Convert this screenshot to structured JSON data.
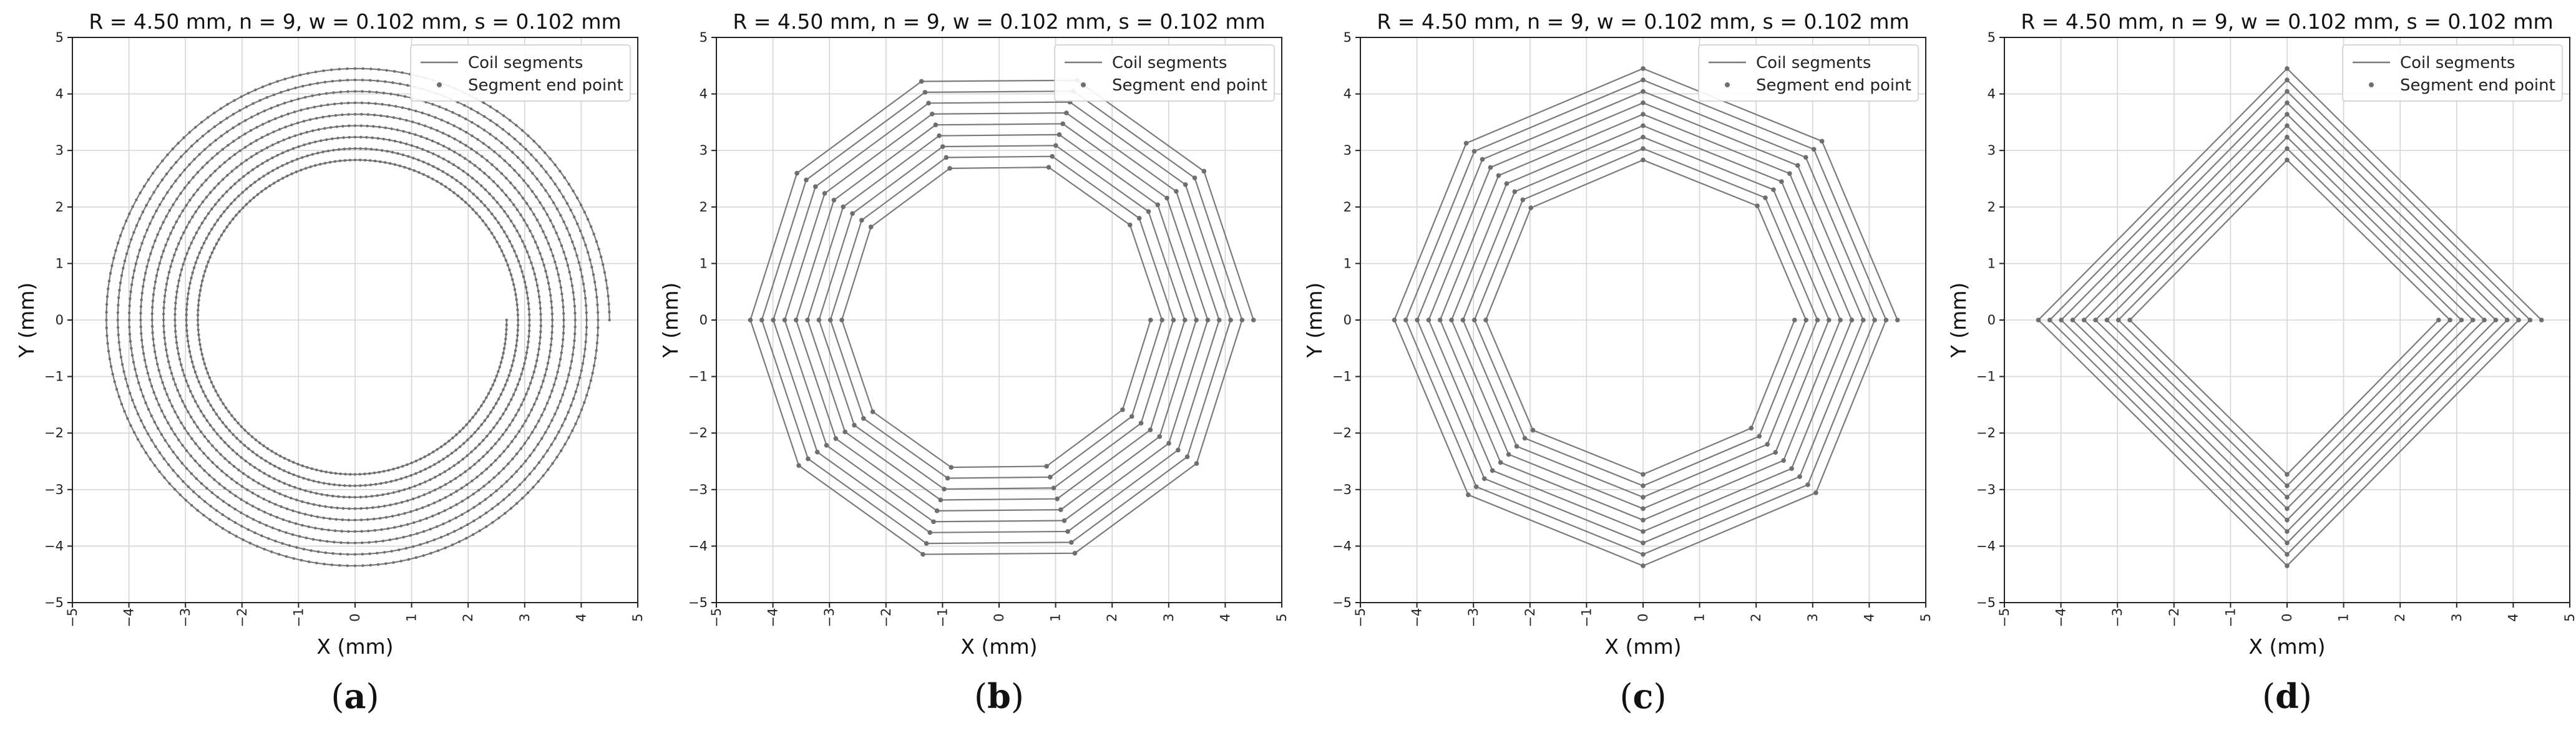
{
  "chart_data": [
    {
      "type": "line",
      "panel_label": "(a)",
      "panel_letter": "a",
      "title": "R =  4.50 mm, n =  9, w =  0.102 mm, s =  0.102 mm",
      "xlabel": "X (mm)",
      "ylabel": "Y (mm)",
      "xlim": [
        -5,
        5
      ],
      "ylim": [
        -5,
        5
      ],
      "xticks": [
        -5,
        -4,
        -3,
        -2,
        -1,
        0,
        1,
        2,
        3,
        4,
        5
      ],
      "yticks": [
        -5,
        -4,
        -3,
        -2,
        -1,
        0,
        1,
        2,
        3,
        4,
        5
      ],
      "grid": true,
      "legend_position": "top-right",
      "legend": [
        "Coil segments",
        "Segment end point"
      ],
      "geometry": {
        "shape": "circular spiral",
        "sides": 200,
        "turns": 9,
        "outer_radius": 4.5,
        "inner_radius": 2.68,
        "start_angle_deg": 0
      },
      "series": [
        {
          "name": "Coil segments",
          "kind": "line",
          "color": "#7a7a7a"
        },
        {
          "name": "Segment end point",
          "kind": "points",
          "color": "#6e6e6e"
        }
      ]
    },
    {
      "type": "line",
      "panel_label": "(b)",
      "panel_letter": "b",
      "title": "R =  4.50 mm, n =  9, w =  0.102 mm, s =  0.102 mm",
      "xlabel": "X (mm)",
      "ylabel": "Y (mm)",
      "xlim": [
        -5,
        5
      ],
      "ylim": [
        -5,
        5
      ],
      "xticks": [
        -5,
        -4,
        -3,
        -2,
        -1,
        0,
        1,
        2,
        3,
        4,
        5
      ],
      "yticks": [
        -5,
        -4,
        -3,
        -2,
        -1,
        0,
        1,
        2,
        3,
        4,
        5
      ],
      "grid": true,
      "legend_position": "top-right",
      "legend": [
        "Coil segments",
        "Segment end point"
      ],
      "geometry": {
        "shape": "polygonal spiral",
        "sides": 10,
        "turns": 9,
        "outer_radius": 4.5,
        "inner_radius": 2.68,
        "start_angle_deg": 0
      },
      "series": [
        {
          "name": "Coil segments",
          "kind": "line",
          "color": "#7a7a7a"
        },
        {
          "name": "Segment end point",
          "kind": "points",
          "color": "#6e6e6e"
        }
      ]
    },
    {
      "type": "line",
      "panel_label": "(c)",
      "panel_letter": "c",
      "title": "R =  4.50 mm, n =  9, w =  0.102 mm, s =  0.102 mm",
      "xlabel": "X (mm)",
      "ylabel": "Y (mm)",
      "xlim": [
        -5,
        5
      ],
      "ylim": [
        -5,
        5
      ],
      "xticks": [
        -5,
        -4,
        -3,
        -2,
        -1,
        0,
        1,
        2,
        3,
        4,
        5
      ],
      "yticks": [
        -5,
        -4,
        -3,
        -2,
        -1,
        0,
        1,
        2,
        3,
        4,
        5
      ],
      "grid": true,
      "legend_position": "top-right",
      "legend": [
        "Coil segments",
        "Segment end point"
      ],
      "geometry": {
        "shape": "polygonal spiral",
        "sides": 8,
        "turns": 9,
        "outer_radius": 4.5,
        "inner_radius": 2.68,
        "start_angle_deg": 0
      },
      "series": [
        {
          "name": "Coil segments",
          "kind": "line",
          "color": "#7a7a7a"
        },
        {
          "name": "Segment end point",
          "kind": "points",
          "color": "#6e6e6e"
        }
      ]
    },
    {
      "type": "line",
      "panel_label": "(d)",
      "panel_letter": "d",
      "title": "R =  4.50 mm, n =  9, w =  0.102 mm, s =  0.102 mm",
      "xlabel": "X (mm)",
      "ylabel": "Y (mm)",
      "xlim": [
        -5,
        5
      ],
      "ylim": [
        -5,
        5
      ],
      "xticks": [
        -5,
        -4,
        -3,
        -2,
        -1,
        0,
        1,
        2,
        3,
        4,
        5
      ],
      "yticks": [
        -5,
        -4,
        -3,
        -2,
        -1,
        0,
        1,
        2,
        3,
        4,
        5
      ],
      "grid": true,
      "legend_position": "top-right",
      "legend": [
        "Coil segments",
        "Segment end point"
      ],
      "geometry": {
        "shape": "polygonal spiral",
        "sides": 4,
        "turns": 9,
        "outer_radius": 4.5,
        "inner_radius": 2.68,
        "start_angle_deg": 0
      },
      "series": [
        {
          "name": "Coil segments",
          "kind": "line",
          "color": "#7a7a7a"
        },
        {
          "name": "Segment end point",
          "kind": "points",
          "color": "#6e6e6e"
        }
      ]
    }
  ],
  "colors": {
    "grid": "#d6d6d6",
    "axes": "#222222",
    "coil_line": "#7a7a7a",
    "end_point": "#6e6e6e"
  }
}
